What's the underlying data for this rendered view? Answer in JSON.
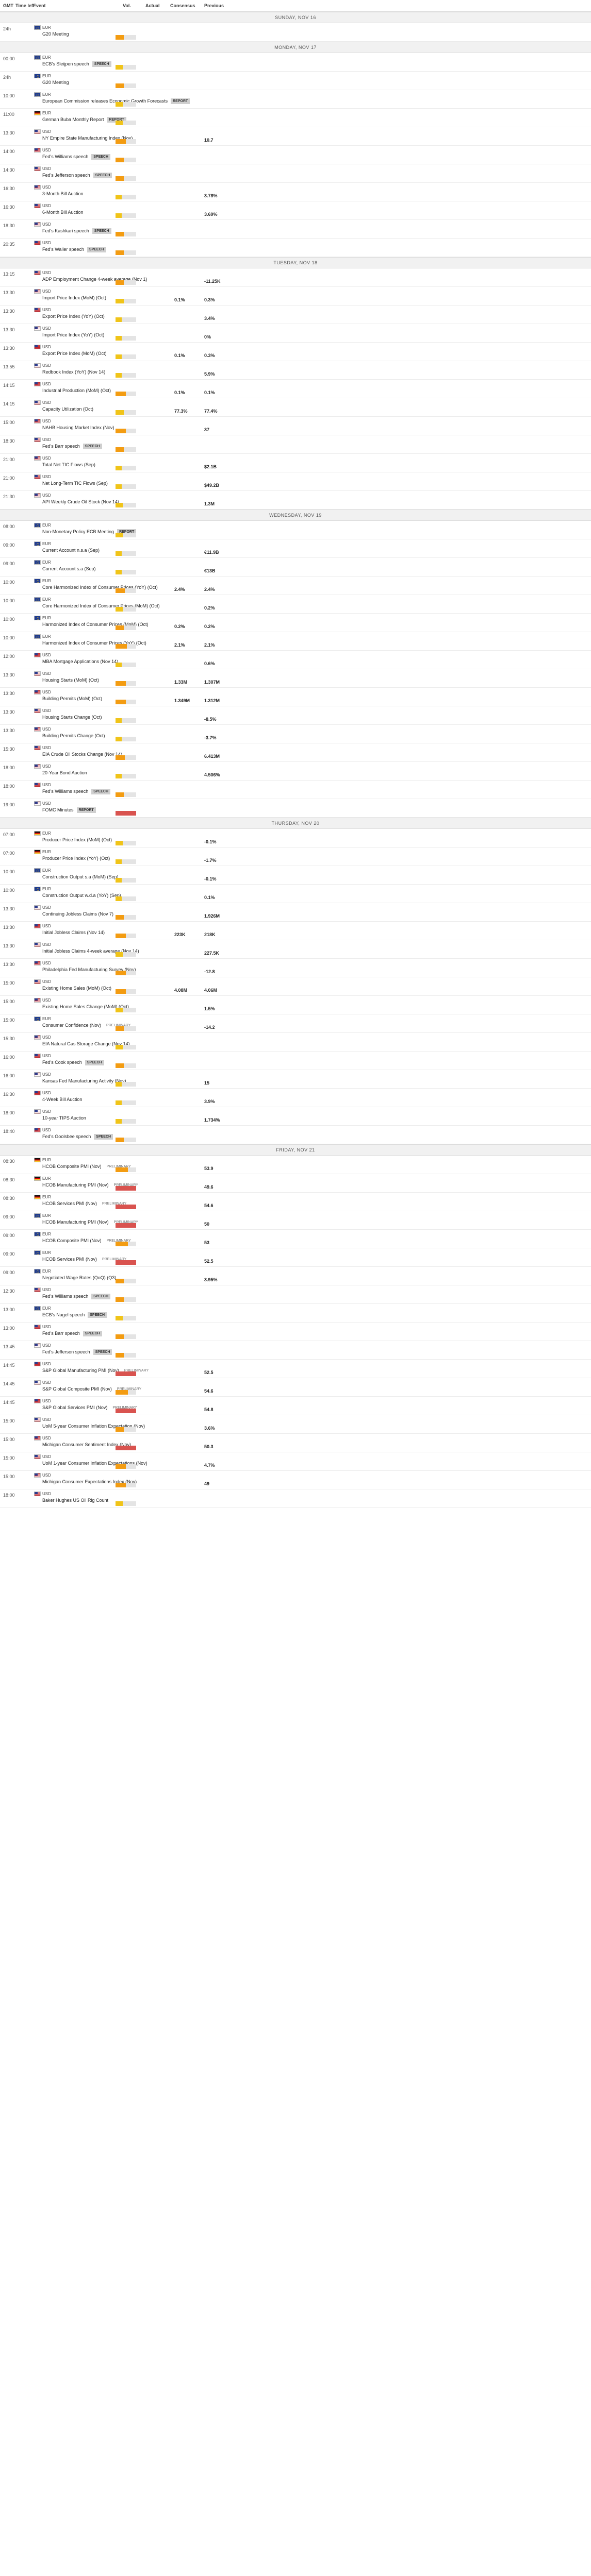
{
  "header": {
    "gmt": "GMT",
    "time_left": "Time left",
    "event": "Event",
    "vol": "Vol.",
    "actual": "Actual",
    "consensus": "Consensus",
    "previous": "Previous"
  },
  "colors": {
    "low": "#f0c419",
    "med": "#f39c12",
    "high": "#d9534f"
  },
  "days": [
    {
      "label": "SUNDAY, NOV 16",
      "events": [
        {
          "time": "24h",
          "cur": "EUR",
          "flag": "EUR",
          "name": "G20 Meeting",
          "vol": 0.4,
          "volc": "med"
        }
      ]
    },
    {
      "label": "MONDAY, NOV 17",
      "events": [
        {
          "time": "00:00",
          "cur": "EUR",
          "flag": "EUR",
          "name": "ECB's Sleijpen speech",
          "tag": "SPEECH",
          "vol": 0.35,
          "volc": "low"
        },
        {
          "time": "24h",
          "cur": "EUR",
          "flag": "EUR",
          "name": "G20 Meeting",
          "vol": 0.4,
          "volc": "med"
        },
        {
          "time": "10:00",
          "cur": "EUR",
          "flag": "EUR",
          "name": "European Commission releases Economic Growth Forecasts",
          "tag": "REPORT",
          "vol": 0.35,
          "volc": "low"
        },
        {
          "time": "11:00",
          "cur": "EUR",
          "flag": "GER",
          "name": "German Buba Monthly Report",
          "tag": "REPORT",
          "vol": 0.35,
          "volc": "low"
        },
        {
          "time": "13:30",
          "cur": "USD",
          "flag": "USD",
          "name": "NY Empire State Manufacturing Index (Nov)",
          "vol": 0.5,
          "volc": "med",
          "prev": "10.7"
        },
        {
          "time": "14:00",
          "cur": "USD",
          "flag": "USD",
          "name": "Fed's Williams speech",
          "tag": "SPEECH",
          "vol": 0.4,
          "volc": "med"
        },
        {
          "time": "14:30",
          "cur": "USD",
          "flag": "USD",
          "name": "Fed's Jefferson speech",
          "tag": "SPEECH",
          "vol": 0.4,
          "volc": "med"
        },
        {
          "time": "16:30",
          "cur": "USD",
          "flag": "USD",
          "name": "3-Month Bill Auction",
          "vol": 0.3,
          "volc": "low",
          "prev": "3.78%"
        },
        {
          "time": "16:30",
          "cur": "USD",
          "flag": "USD",
          "name": "6-Month Bill Auction",
          "vol": 0.3,
          "volc": "low",
          "prev": "3.69%"
        },
        {
          "time": "18:30",
          "cur": "USD",
          "flag": "USD",
          "name": "Fed's Kashkari speech",
          "tag": "SPEECH",
          "vol": 0.4,
          "volc": "med"
        },
        {
          "time": "20:35",
          "cur": "USD",
          "flag": "USD",
          "name": "Fed's Waller speech",
          "tag": "SPEECH",
          "vol": 0.4,
          "volc": "med"
        }
      ]
    },
    {
      "label": "TUESDAY, NOV 18",
      "events": [
        {
          "time": "13:15",
          "cur": "USD",
          "flag": "USD",
          "name": "ADP Employment Change 4-week average (Nov 1)",
          "vol": 0.4,
          "volc": "med",
          "prev": "-11.25K"
        },
        {
          "time": "13:30",
          "cur": "USD",
          "flag": "USD",
          "name": "Import Price Index (MoM) (Oct)",
          "vol": 0.4,
          "volc": "low",
          "con": "0.1%",
          "prev": "0.3%"
        },
        {
          "time": "13:30",
          "cur": "USD",
          "flag": "USD",
          "name": "Export Price Index (YoY) (Oct)",
          "vol": 0.3,
          "volc": "low",
          "prev": "3.4%"
        },
        {
          "time": "13:30",
          "cur": "USD",
          "flag": "USD",
          "name": "Import Price Index (YoY) (Oct)",
          "vol": 0.3,
          "volc": "low",
          "prev": "0%"
        },
        {
          "time": "13:30",
          "cur": "USD",
          "flag": "USD",
          "name": "Export Price Index (MoM) (Oct)",
          "vol": 0.3,
          "volc": "low",
          "con": "0.1%",
          "prev": "0.3%"
        },
        {
          "time": "13:55",
          "cur": "USD",
          "flag": "USD",
          "name": "Redbook Index (YoY) (Nov 14)",
          "vol": 0.3,
          "volc": "low",
          "prev": "5.9%"
        },
        {
          "time": "14:15",
          "cur": "USD",
          "flag": "USD",
          "name": "Industrial Production (MoM) (Oct)",
          "vol": 0.5,
          "volc": "med",
          "con": "0.1%",
          "prev": "0.1%"
        },
        {
          "time": "14:15",
          "cur": "USD",
          "flag": "USD",
          "name": "Capacity Utilization (Oct)",
          "vol": 0.4,
          "volc": "low",
          "con": "77.3%",
          "prev": "77.4%"
        },
        {
          "time": "15:00",
          "cur": "USD",
          "flag": "USD",
          "name": "NAHB Housing Market Index (Nov)",
          "vol": 0.5,
          "volc": "med",
          "prev": "37"
        },
        {
          "time": "18:30",
          "cur": "USD",
          "flag": "USD",
          "name": "Fed's Barr speech",
          "tag": "SPEECH",
          "vol": 0.4,
          "volc": "med"
        },
        {
          "time": "21:00",
          "cur": "USD",
          "flag": "USD",
          "name": "Total Net TIC Flows (Sep)",
          "vol": 0.3,
          "volc": "low",
          "prev": "$2.1B"
        },
        {
          "time": "21:00",
          "cur": "USD",
          "flag": "USD",
          "name": "Net Long-Term TIC Flows (Sep)",
          "vol": 0.3,
          "volc": "low",
          "prev": "$49.2B"
        },
        {
          "time": "21:30",
          "cur": "USD",
          "flag": "USD",
          "name": "API Weekly Crude Oil Stock (Nov 14)",
          "vol": 0.35,
          "volc": "low",
          "prev": "1.3M"
        }
      ]
    },
    {
      "label": "WEDNESDAY, NOV 19",
      "events": [
        {
          "time": "08:00",
          "cur": "EUR",
          "flag": "EUR",
          "name": "Non-Monetary Policy ECB Meeting",
          "tag": "REPORT",
          "vol": 0.35,
          "volc": "low"
        },
        {
          "time": "09:00",
          "cur": "EUR",
          "flag": "EUR",
          "name": "Current Account n.s.a (Sep)",
          "vol": 0.3,
          "volc": "low",
          "prev": "€11.9B"
        },
        {
          "time": "09:00",
          "cur": "EUR",
          "flag": "EUR",
          "name": "Current Account s.a (Sep)",
          "vol": 0.3,
          "volc": "low",
          "prev": "€13B"
        },
        {
          "time": "10:00",
          "cur": "EUR",
          "flag": "EUR",
          "name": "Core Harmonized Index of Consumer Prices (YoY) (Oct)",
          "vol": 0.45,
          "volc": "med",
          "con": "2.4%",
          "prev": "2.4%"
        },
        {
          "time": "10:00",
          "cur": "EUR",
          "flag": "EUR",
          "name": "Core Harmonized Index of Consumer Prices (MoM) (Oct)",
          "vol": 0.35,
          "volc": "low",
          "prev": "0.2%"
        },
        {
          "time": "10:00",
          "cur": "EUR",
          "flag": "EUR",
          "name": "Harmonized Index of Consumer Prices (MoM) (Oct)",
          "vol": 0.4,
          "volc": "med",
          "con": "0.2%",
          "prev": "0.2%"
        },
        {
          "time": "10:00",
          "cur": "EUR",
          "flag": "EUR",
          "name": "Harmonized Index of Consumer Prices (YoY) (Oct)",
          "vol": 0.55,
          "volc": "med",
          "con": "2.1%",
          "prev": "2.1%"
        },
        {
          "time": "12:00",
          "cur": "USD",
          "flag": "USD",
          "name": "MBA Mortgage Applications (Nov 14)",
          "vol": 0.3,
          "volc": "low",
          "prev": "0.6%"
        },
        {
          "time": "13:30",
          "cur": "USD",
          "flag": "USD",
          "name": "Housing Starts (MoM) (Oct)",
          "vol": 0.5,
          "volc": "med",
          "con": "1.33M",
          "prev": "1.307M"
        },
        {
          "time": "13:30",
          "cur": "USD",
          "flag": "USD",
          "name": "Building Permits (MoM) (Oct)",
          "vol": 0.5,
          "volc": "med",
          "con": "1.349M",
          "prev": "1.312M"
        },
        {
          "time": "13:30",
          "cur": "USD",
          "flag": "USD",
          "name": "Housing Starts Change (Oct)",
          "vol": 0.3,
          "volc": "low",
          "prev": "-8.5%"
        },
        {
          "time": "13:30",
          "cur": "USD",
          "flag": "USD",
          "name": "Building Permits Change (Oct)",
          "vol": 0.3,
          "volc": "low",
          "prev": "-3.7%"
        },
        {
          "time": "15:30",
          "cur": "USD",
          "flag": "USD",
          "name": "EIA Crude Oil Stocks Change (Nov 14)",
          "vol": 0.45,
          "volc": "med",
          "prev": "6.413M"
        },
        {
          "time": "18:00",
          "cur": "USD",
          "flag": "USD",
          "name": "20-Year Bond Auction",
          "vol": 0.3,
          "volc": "low",
          "prev": "4.506%"
        },
        {
          "time": "18:00",
          "cur": "USD",
          "flag": "USD",
          "name": "Fed's Williams speech",
          "tag": "SPEECH",
          "vol": 0.4,
          "volc": "med"
        },
        {
          "time": "19:00",
          "cur": "USD",
          "flag": "USD",
          "name": "FOMC Minutes",
          "tag": "REPORT",
          "vol": 1.0,
          "volc": "high"
        }
      ]
    },
    {
      "label": "THURSDAY, NOV 20",
      "events": [
        {
          "time": "07:00",
          "cur": "EUR",
          "flag": "GER",
          "name": "Producer Price Index (MoM) (Oct)",
          "vol": 0.35,
          "volc": "low",
          "prev": "-0.1%"
        },
        {
          "time": "07:00",
          "cur": "EUR",
          "flag": "GER",
          "name": "Producer Price Index (YoY) (Oct)",
          "vol": 0.3,
          "volc": "low",
          "prev": "-1.7%"
        },
        {
          "time": "10:00",
          "cur": "EUR",
          "flag": "EUR",
          "name": "Construction Output s.a (MoM) (Sep)",
          "vol": 0.3,
          "volc": "low",
          "prev": "-0.1%"
        },
        {
          "time": "10:00",
          "cur": "EUR",
          "flag": "EUR",
          "name": "Construction Output w.d.a (YoY) (Sep)",
          "vol": 0.3,
          "volc": "low",
          "prev": "0.1%"
        },
        {
          "time": "13:30",
          "cur": "USD",
          "flag": "USD",
          "name": "Continuing Jobless Claims (Nov 7)",
          "vol": 0.4,
          "volc": "med",
          "prev": "1.926M"
        },
        {
          "time": "13:30",
          "cur": "USD",
          "flag": "USD",
          "name": "Initial Jobless Claims (Nov 14)",
          "vol": 0.5,
          "volc": "med",
          "con": "223K",
          "prev": "218K"
        },
        {
          "time": "13:30",
          "cur": "USD",
          "flag": "USD",
          "name": "Initial Jobless Claims 4-week average (Nov 14)",
          "vol": 0.35,
          "volc": "low",
          "prev": "227.5K"
        },
        {
          "time": "13:30",
          "cur": "USD",
          "flag": "USD",
          "name": "Philadelphia Fed Manufacturing Survey (Nov)",
          "vol": 0.5,
          "volc": "med",
          "prev": "-12.8"
        },
        {
          "time": "15:00",
          "cur": "USD",
          "flag": "USD",
          "name": "Existing Home Sales (MoM) (Oct)",
          "vol": 0.5,
          "volc": "med",
          "con": "4.08M",
          "prev": "4.06M"
        },
        {
          "time": "15:00",
          "cur": "USD",
          "flag": "USD",
          "name": "Existing Home Sales Change (MoM) (Oct)",
          "vol": 0.35,
          "volc": "low",
          "prev": "1.5%"
        },
        {
          "time": "15:00",
          "cur": "EUR",
          "flag": "EUR",
          "name": "Consumer Confidence (Nov)",
          "pre": "PRELIMINARY",
          "vol": 0.4,
          "volc": "med",
          "prev": "-14.2"
        },
        {
          "time": "15:30",
          "cur": "USD",
          "flag": "USD",
          "name": "EIA Natural Gas Storage Change (Nov 14)",
          "vol": 0.35,
          "volc": "low"
        },
        {
          "time": "16:00",
          "cur": "USD",
          "flag": "USD",
          "name": "Fed's Cook speech",
          "tag": "SPEECH",
          "vol": 0.4,
          "volc": "med"
        },
        {
          "time": "16:00",
          "cur": "USD",
          "flag": "USD",
          "name": "Kansas Fed Manufacturing Activity (Nov)",
          "vol": 0.3,
          "volc": "low",
          "prev": "15"
        },
        {
          "time": "16:30",
          "cur": "USD",
          "flag": "USD",
          "name": "4-Week Bill Auction",
          "vol": 0.3,
          "volc": "low",
          "prev": "3.9%"
        },
        {
          "time": "18:00",
          "cur": "USD",
          "flag": "USD",
          "name": "10-year TIPS Auction",
          "vol": 0.3,
          "volc": "low",
          "prev": "1.734%"
        },
        {
          "time": "18:40",
          "cur": "USD",
          "flag": "USD",
          "name": "Fed's Goolsbee speech",
          "tag": "SPEECH",
          "vol": 0.4,
          "volc": "med"
        }
      ]
    },
    {
      "label": "FRIDAY, NOV 21",
      "events": [
        {
          "time": "08:30",
          "cur": "EUR",
          "flag": "GER",
          "name": "HCOB Composite PMI (Nov)",
          "pre": "PRELIMINARY",
          "vol": 0.6,
          "volc": "med",
          "prev": "53.9"
        },
        {
          "time": "08:30",
          "cur": "EUR",
          "flag": "GER",
          "name": "HCOB Manufacturing PMI (Nov)",
          "pre": "PRELIMINARY",
          "vol": 1.0,
          "volc": "high",
          "prev": "49.6"
        },
        {
          "time": "08:30",
          "cur": "EUR",
          "flag": "GER",
          "name": "HCOB Services PMI (Nov)",
          "pre": "PRELIMINARY",
          "vol": 1.0,
          "volc": "high",
          "prev": "54.6"
        },
        {
          "time": "09:00",
          "cur": "EUR",
          "flag": "EUR",
          "name": "HCOB Manufacturing PMI (Nov)",
          "pre": "PRELIMINARY",
          "vol": 1.0,
          "volc": "high",
          "prev": "50"
        },
        {
          "time": "09:00",
          "cur": "EUR",
          "flag": "EUR",
          "name": "HCOB Composite PMI (Nov)",
          "pre": "PRELIMINARY",
          "vol": 0.6,
          "volc": "med",
          "prev": "53"
        },
        {
          "time": "09:00",
          "cur": "EUR",
          "flag": "EUR",
          "name": "HCOB Services PMI (Nov)",
          "pre": "PRELIMINARY",
          "vol": 1.0,
          "volc": "high",
          "prev": "52.5"
        },
        {
          "time": "09:00",
          "cur": "EUR",
          "flag": "EUR",
          "name": "Negotiated Wage Rates (QoQ) (Q3)",
          "vol": 0.4,
          "volc": "med",
          "prev": "3.95%"
        },
        {
          "time": "12:30",
          "cur": "USD",
          "flag": "USD",
          "name": "Fed's Williams speech",
          "tag": "SPEECH",
          "vol": 0.4,
          "volc": "med"
        },
        {
          "time": "13:00",
          "cur": "EUR",
          "flag": "EUR",
          "name": "ECB's Nagel speech",
          "tag": "SPEECH",
          "vol": 0.35,
          "volc": "low"
        },
        {
          "time": "13:00",
          "cur": "USD",
          "flag": "USD",
          "name": "Fed's Barr speech",
          "tag": "SPEECH",
          "vol": 0.4,
          "volc": "med"
        },
        {
          "time": "13:45",
          "cur": "USD",
          "flag": "USD",
          "name": "Fed's Jefferson speech",
          "tag": "SPEECH",
          "vol": 0.4,
          "volc": "med"
        },
        {
          "time": "14:45",
          "cur": "USD",
          "flag": "USD",
          "name": "S&P Global Manufacturing PMI (Nov)",
          "pre": "PRELIMINARY",
          "vol": 1.0,
          "volc": "high",
          "prev": "52.5"
        },
        {
          "time": "14:45",
          "cur": "USD",
          "flag": "USD",
          "name": "S&P Global Composite PMI (Nov)",
          "pre": "PRELIMINARY",
          "vol": 0.6,
          "volc": "med",
          "prev": "54.6"
        },
        {
          "time": "14:45",
          "cur": "USD",
          "flag": "USD",
          "name": "S&P Global Services PMI (Nov)",
          "pre": "PRELIMINARY",
          "vol": 1.0,
          "volc": "high",
          "prev": "54.8"
        },
        {
          "time": "15:00",
          "cur": "USD",
          "flag": "USD",
          "name": "UoM 5-year Consumer Inflation Expectation (Nov)",
          "vol": 0.4,
          "volc": "med",
          "prev": "3.6%"
        },
        {
          "time": "15:00",
          "cur": "USD",
          "flag": "USD",
          "name": "Michigan Consumer Sentiment Index (Nov)",
          "vol": 1.0,
          "volc": "high",
          "prev": "50.3"
        },
        {
          "time": "15:00",
          "cur": "USD",
          "flag": "USD",
          "name": "UoM 1-year Consumer Inflation Expectations (Nov)",
          "vol": 0.5,
          "volc": "med",
          "prev": "4.7%"
        },
        {
          "time": "15:00",
          "cur": "USD",
          "flag": "USD",
          "name": "Michigan Consumer Expectations Index (Nov)",
          "vol": 0.5,
          "volc": "med",
          "prev": "49"
        },
        {
          "time": "18:00",
          "cur": "USD",
          "flag": "USD",
          "name": "Baker Hughes US Oil Rig Count",
          "vol": 0.35,
          "volc": "low"
        }
      ]
    }
  ]
}
